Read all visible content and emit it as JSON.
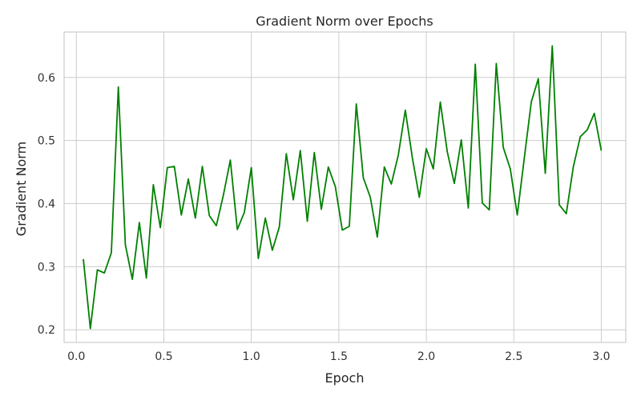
{
  "chart_data": {
    "type": "line",
    "title": "Gradient Norm over Epochs",
    "xlabel": "Epoch",
    "ylabel": "Gradient Norm",
    "xlim": [
      -0.07,
      3.14
    ],
    "ylim": [
      0.18,
      0.672
    ],
    "xticks": [
      0.0,
      0.5,
      1.0,
      1.5,
      2.0,
      2.5,
      3.0
    ],
    "xtick_labels": [
      "0.0",
      "0.5",
      "1.0",
      "1.5",
      "2.0",
      "2.5",
      "3.0"
    ],
    "yticks": [
      0.2,
      0.3,
      0.4,
      0.5,
      0.6
    ],
    "ytick_labels": [
      "0.2",
      "0.3",
      "0.4",
      "0.5",
      "0.6"
    ],
    "grid": true,
    "line_color": "#008000",
    "series": [
      {
        "x": [
          0.04,
          0.08,
          0.12,
          0.16,
          0.2,
          0.24,
          0.28,
          0.32,
          0.36,
          0.4,
          0.44,
          0.48,
          0.52,
          0.56,
          0.6,
          0.64,
          0.68,
          0.72,
          0.76,
          0.8,
          0.84,
          0.88,
          0.92,
          0.96,
          1.0,
          1.04,
          1.08,
          1.12,
          1.16,
          1.2,
          1.24,
          1.28,
          1.32,
          1.36,
          1.4,
          1.44,
          1.48,
          1.52,
          1.56,
          1.6,
          1.64,
          1.68,
          1.72,
          1.76,
          1.8,
          1.84,
          1.88,
          1.92,
          1.96,
          2.0,
          2.04,
          2.08,
          2.12,
          2.16,
          2.2,
          2.24,
          2.28,
          2.32,
          2.36,
          2.4,
          2.44,
          2.48,
          2.52,
          2.56,
          2.6,
          2.64,
          2.68,
          2.72,
          2.76,
          2.8,
          2.84,
          2.88,
          2.92,
          2.96,
          3.0
        ],
        "values": [
          0.312,
          0.202,
          0.295,
          0.29,
          0.322,
          0.585,
          0.335,
          0.28,
          0.37,
          0.282,
          0.43,
          0.362,
          0.457,
          0.459,
          0.382,
          0.439,
          0.377,
          0.459,
          0.381,
          0.365,
          0.413,
          0.469,
          0.359,
          0.386,
          0.457,
          0.313,
          0.377,
          0.326,
          0.363,
          0.479,
          0.406,
          0.484,
          0.372,
          0.481,
          0.391,
          0.458,
          0.427,
          0.358,
          0.364,
          0.558,
          0.441,
          0.41,
          0.347,
          0.458,
          0.431,
          0.477,
          0.548,
          0.473,
          0.41,
          0.487,
          0.455,
          0.561,
          0.482,
          0.432,
          0.501,
          0.393,
          0.621,
          0.401,
          0.39,
          0.622,
          0.489,
          0.455,
          0.382,
          0.472,
          0.561,
          0.598,
          0.448,
          0.65,
          0.398,
          0.384,
          0.458,
          0.506,
          0.517,
          0.543,
          0.484
        ]
      }
    ]
  }
}
